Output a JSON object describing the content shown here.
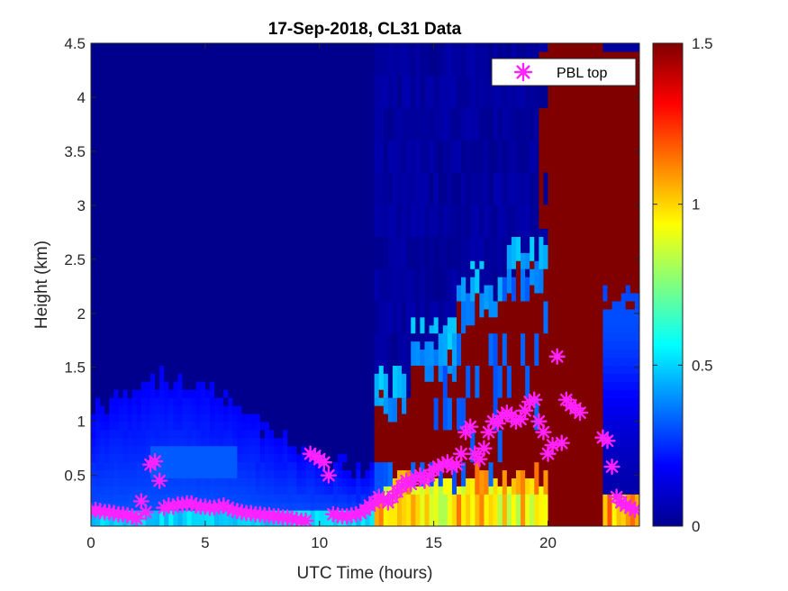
{
  "chart_data": {
    "type": "heatmap",
    "title": "17-Sep-2018, CL31 Data",
    "xlabel": "UTC Time (hours)",
    "ylabel": "Height (km)",
    "xlim": [
      0,
      24
    ],
    "ylim": [
      0.03,
      4.5
    ],
    "x_ticks": [
      0,
      5,
      10,
      15,
      20
    ],
    "x_tick_labels": [
      "0",
      "5",
      "10",
      "15",
      "20"
    ],
    "y_ticks": [
      0.5,
      1,
      1.5,
      2,
      2.5,
      3,
      3.5,
      4,
      4.5
    ],
    "y_tick_labels": [
      "0.5",
      "1",
      "1.5",
      "2",
      "2.5",
      "3",
      "3.5",
      "4",
      "4.5"
    ],
    "colorbar": {
      "colormap": "jet",
      "clim": [
        0,
        1.5
      ],
      "ticks": [
        0,
        0.5,
        1,
        1.5
      ],
      "tick_labels": [
        "0",
        "0.5",
        "1",
        "1.5"
      ]
    },
    "legend": {
      "position": "top-right",
      "entries": [
        "PBL top"
      ]
    },
    "series": [
      {
        "name": "PBL top",
        "marker": "asterisk",
        "color": "#ff22ff",
        "x": [
          0.0,
          0.2,
          0.4,
          0.6,
          0.8,
          1.0,
          1.2,
          1.4,
          1.6,
          1.8,
          2.0,
          2.2,
          2.4,
          2.6,
          2.8,
          3.0,
          3.2,
          3.4,
          3.6,
          3.8,
          4.0,
          4.2,
          4.4,
          4.6,
          4.8,
          5.0,
          5.2,
          5.4,
          5.6,
          5.8,
          6.0,
          6.2,
          6.4,
          6.6,
          6.8,
          7.0,
          7.2,
          7.4,
          7.6,
          7.8,
          8.0,
          8.2,
          8.4,
          8.6,
          8.8,
          9.0,
          9.2,
          9.4,
          9.6,
          9.8,
          10.0,
          10.2,
          10.4,
          10.6,
          10.8,
          11.0,
          11.2,
          11.4,
          11.6,
          11.8,
          12.0,
          12.2,
          12.4,
          12.6,
          12.8,
          13.0,
          13.2,
          13.4,
          13.6,
          13.8,
          14.0,
          14.2,
          14.4,
          14.6,
          14.8,
          15.0,
          15.2,
          15.4,
          15.6,
          15.8,
          16.0,
          16.2,
          16.4,
          16.6,
          16.8,
          17.0,
          17.2,
          17.4,
          17.6,
          17.8,
          18.0,
          18.2,
          18.4,
          18.6,
          18.8,
          19.0,
          19.2,
          19.4,
          19.6,
          19.8,
          20.0,
          20.2,
          20.4,
          20.6,
          20.8,
          21.0,
          21.2,
          21.4,
          22.4,
          22.6,
          22.8,
          23.0,
          23.2,
          23.4,
          23.6,
          23.8
        ],
        "y": [
          0.17,
          0.18,
          0.17,
          0.16,
          0.16,
          0.15,
          0.14,
          0.14,
          0.13,
          0.12,
          0.1,
          0.26,
          0.16,
          0.6,
          0.63,
          0.45,
          0.2,
          0.22,
          0.21,
          0.23,
          0.23,
          0.24,
          0.24,
          0.22,
          0.21,
          0.21,
          0.2,
          0.2,
          0.21,
          0.22,
          0.2,
          0.18,
          0.17,
          0.16,
          0.15,
          0.15,
          0.14,
          0.14,
          0.13,
          0.13,
          0.12,
          0.12,
          0.11,
          0.11,
          0.1,
          0.09,
          0.08,
          0.08,
          0.7,
          0.68,
          0.65,
          0.62,
          0.5,
          0.14,
          0.13,
          0.12,
          0.12,
          0.13,
          0.14,
          0.15,
          0.18,
          0.22,
          0.25,
          0.3,
          0.28,
          0.25,
          0.3,
          0.35,
          0.4,
          0.45,
          0.42,
          0.48,
          0.5,
          0.45,
          0.5,
          0.55,
          0.58,
          0.6,
          0.62,
          0.58,
          0.6,
          0.7,
          0.9,
          0.95,
          0.7,
          0.65,
          0.75,
          0.9,
          1.0,
          0.98,
          1.05,
          1.08,
          1.05,
          1.0,
          1.02,
          1.1,
          1.18,
          1.2,
          1.0,
          0.9,
          0.7,
          0.78,
          1.6,
          0.8,
          1.2,
          1.15,
          1.12,
          1.08,
          0.85,
          0.82,
          0.58,
          0.3,
          0.25,
          0.22,
          0.2,
          0.18
        ]
      }
    ],
    "field_description": {
      "background_value": 0.02,
      "near_surface_layer": "values 0.2-0.5 below ~1.2 km from 0 to 12 h",
      "boundary_layer_aerosol": "values 0.6-1.2 below ~0.9 km from 13 to 20 h",
      "cloud_saturation": "values >=1.5 (dark red) above ~0.4 km from 13 to 20 h; full column 20-22.3 h; column above 2 km at 22.5-24 h"
    }
  }
}
